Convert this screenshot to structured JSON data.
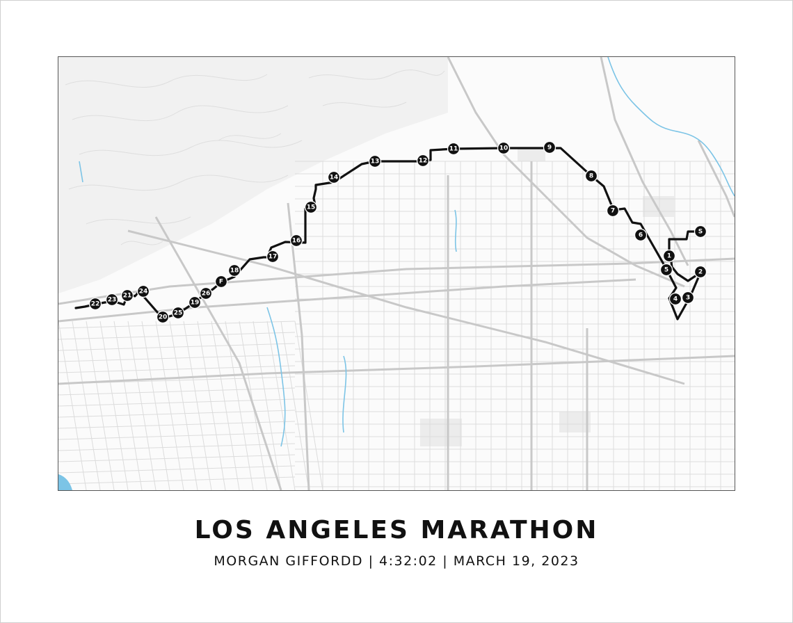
{
  "poster": {
    "title": "LOS ANGELES MARATHON",
    "subtitle": "MORGAN GIFFORDD | 4:32:02 | MARCH 19, 2023"
  },
  "colors": {
    "route": "#111111",
    "street": "#d6d6d6",
    "major_road": "#c4c4c4",
    "water": "#7cc4e6",
    "park": "#ececec",
    "background": "#ffffff"
  },
  "map": {
    "markers": [
      {
        "label": "S"
      },
      {
        "label": "1"
      },
      {
        "label": "2"
      },
      {
        "label": "3"
      },
      {
        "label": "4"
      },
      {
        "label": "5"
      },
      {
        "label": "6"
      },
      {
        "label": "7"
      },
      {
        "label": "8"
      },
      {
        "label": "9"
      },
      {
        "label": "10"
      },
      {
        "label": "11"
      },
      {
        "label": "12"
      },
      {
        "label": "13"
      },
      {
        "label": "14"
      },
      {
        "label": "15"
      },
      {
        "label": "16"
      },
      {
        "label": "17"
      },
      {
        "label": "18"
      },
      {
        "label": "F"
      },
      {
        "label": "26"
      },
      {
        "label": "19"
      },
      {
        "label": "25"
      },
      {
        "label": "20"
      },
      {
        "label": "24"
      },
      {
        "label": "21"
      },
      {
        "label": "23"
      },
      {
        "label": "22"
      }
    ]
  }
}
